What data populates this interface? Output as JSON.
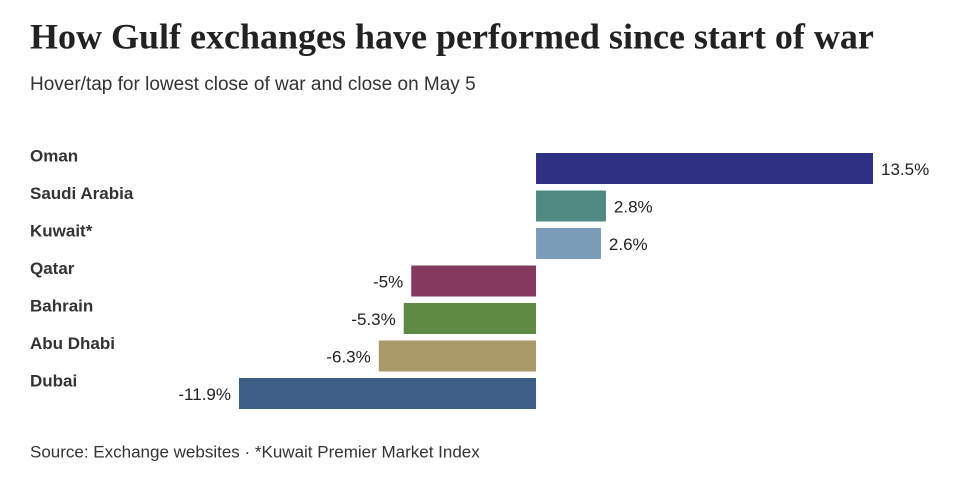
{
  "chart_data": {
    "type": "bar",
    "orientation": "horizontal",
    "title": "How Gulf exchanges have performed since start of war",
    "subtitle": "Hover/tap for lowest close of war and close on May 5",
    "source": "Source: Exchange websites · *Kuwait Premier Market Index",
    "categories": [
      "Oman",
      "Saudi Arabia",
      "Kuwait*",
      "Qatar",
      "Bahrain",
      "Abu Dhabi",
      "Dubai"
    ],
    "values": [
      13.5,
      2.8,
      2.6,
      -5,
      -5.3,
      -6.3,
      -11.9
    ],
    "value_labels": [
      "13.5%",
      "2.8%",
      "2.6%",
      "-5%",
      "-5.3%",
      "-6.3%",
      "-11.9%"
    ],
    "colors": [
      "#2e3183",
      "#4f8a83",
      "#7a9cb8",
      "#843a5f",
      "#5f8a43",
      "#aa9a6a",
      "#3f5f87"
    ]
  }
}
